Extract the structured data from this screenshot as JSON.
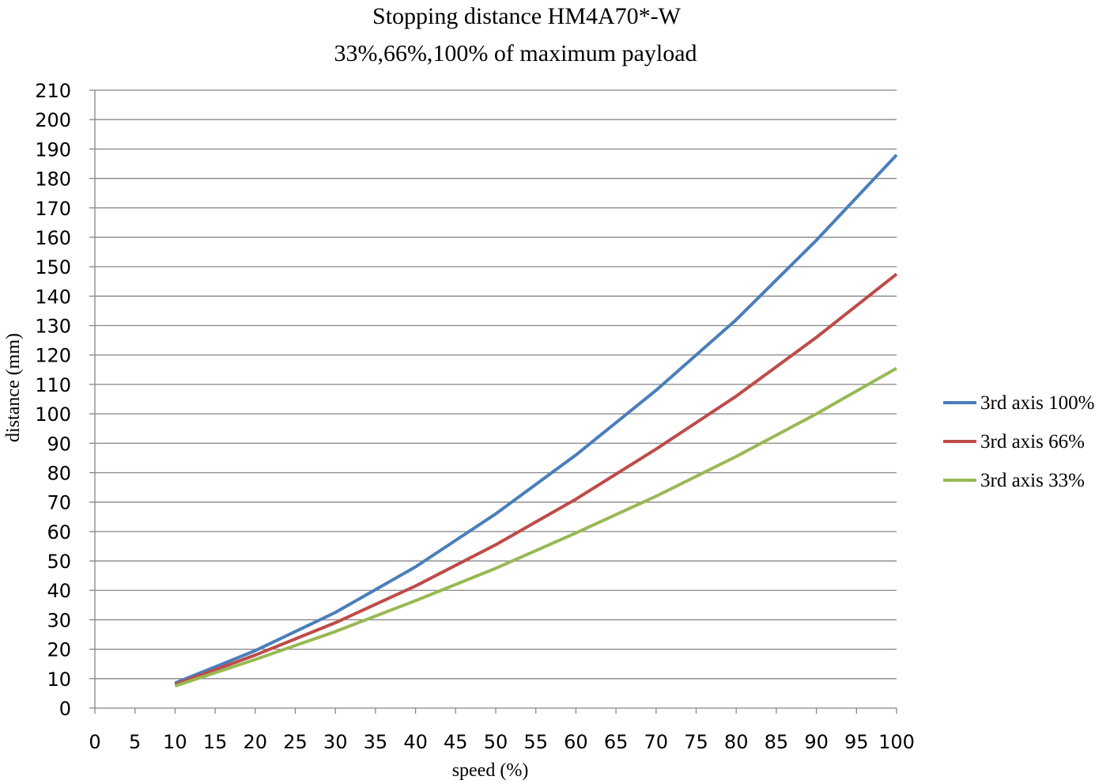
{
  "chart_data": {
    "type": "line",
    "title": "Stopping distance HM4A70*-W",
    "subtitle": "33%,66%,100% of maximum payload",
    "xlabel": "speed (%)",
    "ylabel": "distance (mm)",
    "xlim": [
      0,
      100
    ],
    "ylim": [
      0,
      210
    ],
    "x_ticks": [
      0,
      5,
      10,
      15,
      20,
      25,
      30,
      35,
      40,
      45,
      50,
      55,
      60,
      65,
      70,
      75,
      80,
      85,
      90,
      95,
      100
    ],
    "y_ticks": [
      0,
      10,
      20,
      30,
      40,
      50,
      60,
      70,
      80,
      90,
      100,
      110,
      120,
      130,
      140,
      150,
      160,
      170,
      180,
      190,
      200,
      210
    ],
    "grid": "horizontal",
    "legend_position": "right",
    "x": [
      10,
      20,
      30,
      40,
      50,
      60,
      70,
      80,
      90,
      100
    ],
    "series": [
      {
        "name": "3rd axis 100%",
        "color": "#4A7EBB",
        "values": [
          8.5,
          19.5,
          32.5,
          48,
          66,
          86,
          108,
          132,
          159,
          188
        ]
      },
      {
        "name": "3rd axis 66%",
        "color": "#BE4B48",
        "values": [
          8,
          18,
          29,
          41.5,
          55.5,
          71,
          88,
          106,
          126,
          147.5
        ]
      },
      {
        "name": "3rd axis 33%",
        "color": "#98B954",
        "values": [
          7.5,
          16.5,
          26,
          36.5,
          47.5,
          59.5,
          72,
          85.5,
          100,
          115.5
        ]
      }
    ]
  }
}
